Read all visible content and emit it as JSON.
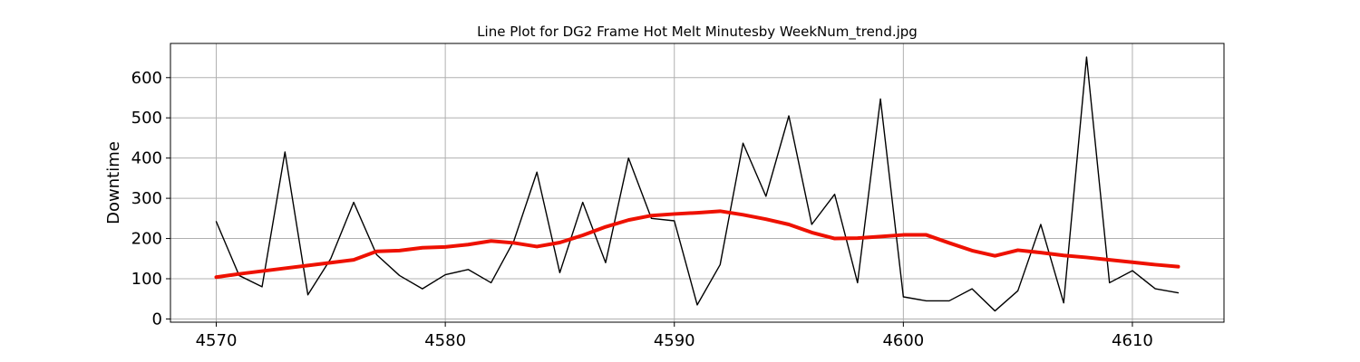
{
  "chart_data": {
    "type": "line",
    "title": "Line Plot for DG2 Frame Hot Melt Minutesby WeekNum_trend.jpg",
    "xlabel": "",
    "ylabel": "Downtime",
    "xlim": [
      4568,
      4614
    ],
    "ylim": [
      -8,
      685
    ],
    "xticks": [
      4570,
      4580,
      4590,
      4600,
      4610
    ],
    "yticks": [
      0,
      100,
      200,
      300,
      400,
      500,
      600
    ],
    "grid": true,
    "x": [
      4570,
      4571,
      4572,
      4573,
      4574,
      4575,
      4576,
      4577,
      4578,
      4579,
      4580,
      4581,
      4582,
      4583,
      4584,
      4585,
      4586,
      4587,
      4588,
      4589,
      4590,
      4591,
      4592,
      4593,
      4594,
      4595,
      4596,
      4597,
      4598,
      4599,
      4600,
      4601,
      4602,
      4603,
      4604,
      4605,
      4606,
      4607,
      4608,
      4609,
      4610,
      4611,
      4612
    ],
    "series": [
      {
        "color": "#000000",
        "values": [
          242,
          108,
          80,
          415,
          60,
          150,
          290,
          160,
          108,
          75,
          110,
          123,
          90,
          195,
          365,
          115,
          290,
          140,
          400,
          250,
          244,
          35,
          135,
          437,
          305,
          505,
          235,
          310,
          90,
          547,
          55,
          45,
          45,
          75,
          20,
          70,
          235,
          40,
          651,
          90,
          120,
          75,
          65
        ]
      },
      {
        "color": "#ee1100",
        "values": [
          104,
          112,
          119,
          126,
          133,
          140,
          147,
          168,
          170,
          177,
          179,
          185,
          194,
          189,
          180,
          190,
          208,
          229,
          246,
          257,
          261,
          264,
          268,
          259,
          248,
          235,
          215,
          200,
          201,
          205,
          209,
          209,
          189,
          170,
          157,
          171,
          165,
          158,
          153,
          147,
          141,
          135,
          130
        ]
      }
    ]
  }
}
